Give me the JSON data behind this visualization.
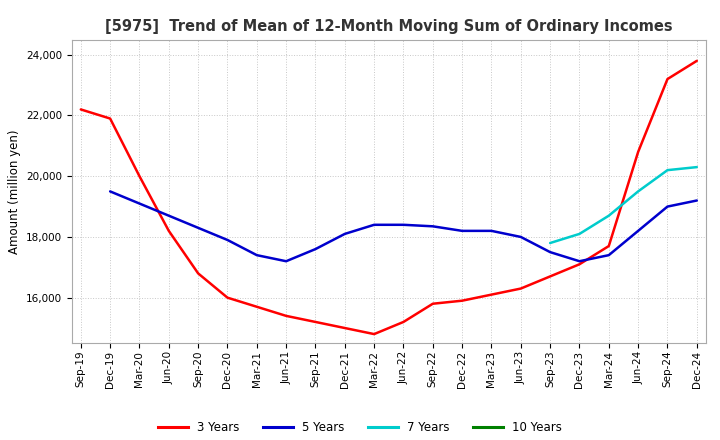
{
  "title": "[5975]  Trend of Mean of 12-Month Moving Sum of Ordinary Incomes",
  "ylabel": "Amount (million yen)",
  "ylim": [
    14500,
    24500
  ],
  "yticks": [
    16000,
    18000,
    20000,
    22000,
    24000
  ],
  "background_color": "#ffffff",
  "grid_color": "#c8c8c8",
  "x_labels": [
    "Sep-19",
    "Dec-19",
    "Mar-20",
    "Jun-20",
    "Sep-20",
    "Dec-20",
    "Mar-21",
    "Jun-21",
    "Sep-21",
    "Dec-21",
    "Mar-22",
    "Jun-22",
    "Sep-22",
    "Dec-22",
    "Mar-23",
    "Jun-23",
    "Sep-23",
    "Dec-23",
    "Mar-24",
    "Jun-24",
    "Sep-24",
    "Dec-24"
  ],
  "series": {
    "3 Years": {
      "color": "#ff0000",
      "data": [
        22200,
        21900,
        20000,
        18200,
        16800,
        16000,
        15700,
        15400,
        15200,
        15000,
        14800,
        15200,
        15800,
        15900,
        16100,
        16300,
        16700,
        17100,
        17700,
        20800,
        23200,
        23800
      ]
    },
    "5 Years": {
      "color": "#0000cd",
      "data": [
        null,
        19500,
        19100,
        18700,
        18300,
        17900,
        17400,
        17200,
        17600,
        18100,
        18400,
        18400,
        18350,
        18200,
        18200,
        18000,
        17500,
        17200,
        17400,
        18200,
        19000,
        19200
      ]
    },
    "7 Years": {
      "color": "#00cccc",
      "data": [
        null,
        null,
        null,
        null,
        null,
        null,
        null,
        null,
        null,
        null,
        null,
        null,
        null,
        null,
        null,
        null,
        17800,
        18100,
        18700,
        19500,
        20200,
        20300
      ]
    },
    "10 Years": {
      "color": "#008000",
      "data": [
        null,
        null,
        null,
        null,
        null,
        null,
        null,
        null,
        null,
        null,
        null,
        null,
        null,
        null,
        null,
        null,
        null,
        null,
        null,
        null,
        null,
        null
      ]
    }
  },
  "legend_labels": [
    "3 Years",
    "5 Years",
    "7 Years",
    "10 Years"
  ],
  "legend_colors": [
    "#ff0000",
    "#0000cd",
    "#00cccc",
    "#008000"
  ],
  "title_fontsize": 10.5,
  "tick_fontsize": 7.5,
  "ylabel_fontsize": 8.5,
  "legend_fontsize": 8.5,
  "linewidth": 1.8
}
